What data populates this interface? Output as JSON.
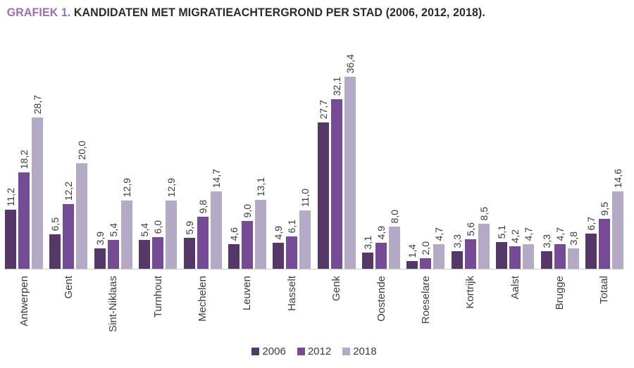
{
  "title": {
    "prefix": "GRAFIEK 1.",
    "text": " KANDIDATEN MET MIGRATIEACHTERGROND PER STAD (2006, 2012, 2018)."
  },
  "colors": {
    "title_accent": "#9d6cb5",
    "title_text": "#2b2b2b",
    "axis_line": "#cccccc",
    "label_text": "#3a3a3a"
  },
  "chart_data": {
    "type": "bar",
    "title": "GRAFIEK 1. KANDIDATEN MET MIGRATIEACHTERGROND PER STAD (2006, 2012, 2018).",
    "categories": [
      "Antwerpen",
      "Gent",
      "Sint-Niklaas",
      "Turnhout",
      "Mechelen",
      "Leuven",
      "Hasselt",
      "Genk",
      "Oostende",
      "Roeselare",
      "Kortrijk",
      "Aalst",
      "Brugge",
      "Totaal"
    ],
    "series": [
      {
        "name": "2006",
        "color": "#553768",
        "values": [
          11.2,
          6.5,
          3.9,
          5.4,
          5.9,
          4.6,
          4.9,
          27.7,
          3.1,
          1.4,
          3.3,
          5.1,
          3.3,
          6.7
        ]
      },
      {
        "name": "2012",
        "color": "#764b95",
        "values": [
          18.2,
          12.2,
          5.4,
          6.0,
          9.8,
          9.0,
          6.1,
          32.1,
          4.9,
          2.0,
          5.6,
          4.2,
          4.7,
          9.5
        ]
      },
      {
        "name": "2018",
        "color": "#b4aac5",
        "values": [
          28.7,
          20.0,
          12.9,
          12.9,
          14.7,
          13.1,
          11.0,
          36.4,
          8.0,
          4.7,
          8.5,
          4.7,
          3.8,
          14.6
        ]
      }
    ],
    "xlabel": "",
    "ylabel": "",
    "ylim": [
      0,
      38
    ],
    "grid": false,
    "y_axis_visible": false,
    "value_label_format": "decimal-comma, rotated 90deg",
    "legend_position": "bottom-center"
  },
  "legend": {
    "items": [
      {
        "label": "2006"
      },
      {
        "label": "2012"
      },
      {
        "label": "2018"
      }
    ]
  }
}
